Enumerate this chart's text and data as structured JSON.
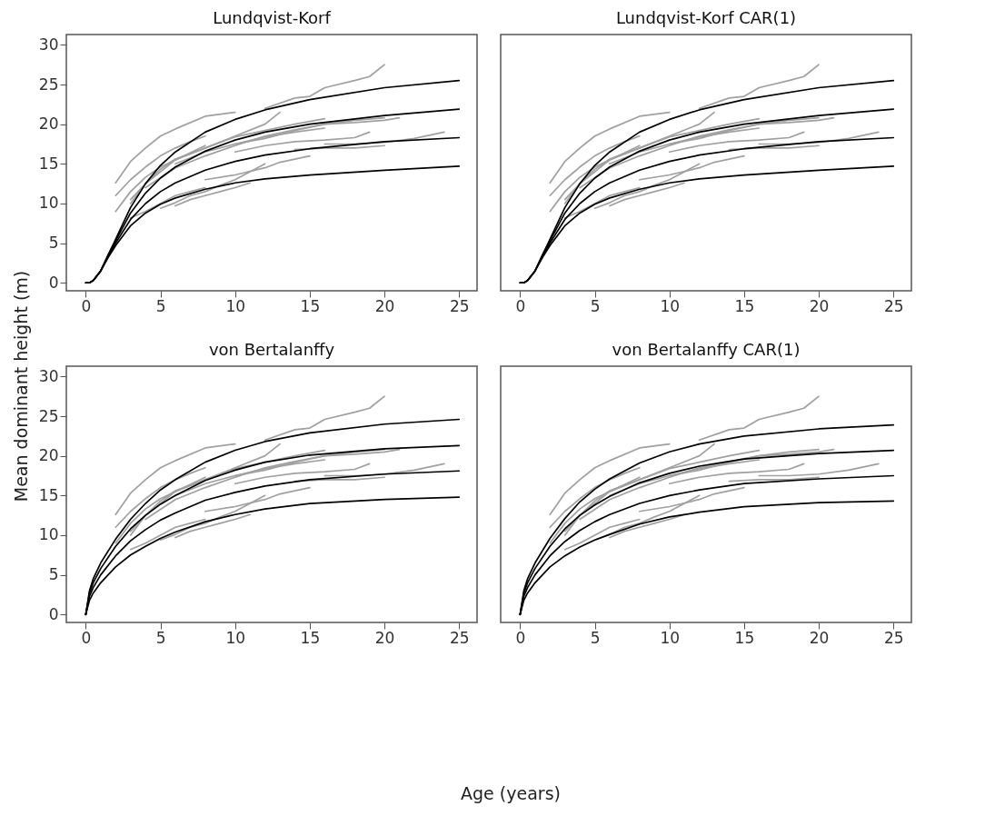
{
  "chart_data": [
    {
      "type": "line",
      "title": "Lundqvist-Korf",
      "xlabel": "Age (years)",
      "ylabel": "Mean dominant height (m)",
      "xlim": [
        -1.3,
        26.2
      ],
      "xticks": [
        0,
        5,
        10,
        15,
        20,
        25
      ],
      "ylim": [
        -1,
        31.3
      ],
      "yticks": [
        0,
        5,
        10,
        15,
        20,
        25,
        30
      ],
      "grid": false,
      "legend": false,
      "tick_labels": "xy",
      "series": [
        {
          "color": "#a0a0a0",
          "x": [
            2,
            3,
            4,
            5,
            6,
            8,
            10
          ],
          "values": [
            12.6,
            15.3,
            17,
            18.5,
            19.4,
            21,
            21.5
          ]
        },
        {
          "color": "#a0a0a0",
          "x": [
            12,
            14,
            15,
            16,
            18,
            19,
            20
          ],
          "values": [
            22,
            23.3,
            23.5,
            24.6,
            25.5,
            26,
            27.5
          ]
        },
        {
          "color": "#a0a0a0",
          "x": [
            2,
            3,
            4,
            5,
            6,
            7,
            8
          ],
          "values": [
            11,
            13,
            14.6,
            16,
            17,
            17.8,
            18.5
          ]
        },
        {
          "color": "#a0a0a0",
          "x": [
            3,
            4,
            5,
            6,
            8,
            10,
            12,
            14,
            16
          ],
          "values": [
            10,
            12.5,
            14.3,
            15.6,
            17,
            18.4,
            19.2,
            20,
            20.7
          ]
        },
        {
          "color": "#a0a0a0",
          "x": [
            2,
            3,
            4,
            5,
            6,
            8
          ],
          "values": [
            9,
            11.5,
            13.3,
            14.6,
            15.5,
            17.3
          ]
        },
        {
          "color": "#a0a0a0",
          "x": [
            3,
            4,
            5,
            6,
            7,
            8
          ],
          "values": [
            8.2,
            9,
            10,
            11,
            11.5,
            12
          ]
        },
        {
          "color": "#a0a0a0",
          "x": [
            5,
            6,
            7,
            8,
            9,
            10,
            12
          ],
          "values": [
            9.4,
            10.1,
            11,
            11.5,
            12.3,
            13,
            15
          ]
        },
        {
          "color": "#a0a0a0",
          "x": [
            6,
            7,
            8,
            9,
            10,
            11
          ],
          "values": [
            9.7,
            10.5,
            11,
            11.5,
            12,
            12.6
          ]
        },
        {
          "color": "#a0a0a0",
          "x": [
            4,
            6,
            8,
            10,
            12,
            14,
            16,
            18,
            20
          ],
          "values": [
            12,
            14.5,
            16,
            17.3,
            18.5,
            19.3,
            20,
            20.5,
            20.8
          ]
        },
        {
          "color": "#a0a0a0",
          "x": [
            10,
            12,
            14,
            16,
            18,
            19
          ],
          "values": [
            16.5,
            17.3,
            17.8,
            18,
            18.3,
            19
          ]
        },
        {
          "color": "#a0a0a0",
          "x": [
            14,
            16,
            18,
            20
          ],
          "values": [
            16.8,
            17,
            17,
            17.3
          ]
        },
        {
          "color": "#a0a0a0",
          "x": [
            16,
            18,
            20,
            22,
            24
          ],
          "values": [
            17.5,
            17.5,
            17.7,
            18.2,
            19
          ]
        },
        {
          "color": "#a0a0a0",
          "x": [
            3,
            4,
            5,
            6,
            8,
            10,
            12,
            13
          ],
          "values": [
            10.5,
            12.5,
            14,
            15.5,
            17,
            18.5,
            20,
            21.5
          ]
        },
        {
          "color": "#a0a0a0",
          "x": [
            6,
            8,
            10,
            12,
            14,
            16
          ],
          "values": [
            15,
            16.5,
            17.5,
            18.4,
            19,
            19.5
          ]
        },
        {
          "color": "#a0a0a0",
          "x": [
            10,
            12,
            14,
            15,
            16,
            18,
            20,
            21
          ],
          "values": [
            17.5,
            18.2,
            19.2,
            19.6,
            20,
            20.2,
            20.5,
            20.8
          ]
        },
        {
          "color": "#a0a0a0",
          "x": [
            8,
            10,
            12,
            13,
            14,
            15
          ],
          "values": [
            13,
            13.6,
            14.5,
            15.2,
            15.6,
            16
          ]
        },
        {
          "color": "#000000",
          "x": [
            0,
            0.25,
            0.5,
            1,
            1.5,
            2,
            3,
            4,
            5,
            6,
            8,
            10,
            12,
            15,
            20,
            25
          ],
          "values": [
            0,
            0,
            0.3,
            1.5,
            3.5,
            5.5,
            9.5,
            12.5,
            14.8,
            16.5,
            19,
            20.6,
            21.8,
            23.1,
            24.6,
            25.5
          ]
        },
        {
          "color": "#000000",
          "x": [
            0,
            0.25,
            0.5,
            1,
            1.5,
            2,
            3,
            4,
            5,
            6,
            8,
            10,
            12,
            15,
            20,
            25
          ],
          "values": [
            0,
            0,
            0.3,
            1.5,
            3.5,
            5.3,
            8.8,
            11.3,
            13.2,
            14.6,
            16.6,
            18,
            19,
            20,
            21.1,
            21.9
          ]
        },
        {
          "color": "#000000",
          "x": [
            0,
            0.25,
            0.5,
            1,
            1.5,
            2,
            3,
            4,
            5,
            6,
            8,
            10,
            12,
            15,
            20,
            25
          ],
          "values": [
            0,
            0,
            0.3,
            1.5,
            3.3,
            5,
            8,
            10,
            11.5,
            12.6,
            14.2,
            15.3,
            16.1,
            16.9,
            17.8,
            18.3
          ]
        },
        {
          "color": "#000000",
          "x": [
            0,
            0.25,
            0.5,
            1,
            1.5,
            2,
            3,
            4,
            5,
            6,
            8,
            10,
            12,
            15,
            20,
            25
          ],
          "values": [
            0,
            0,
            0.3,
            1.5,
            3.2,
            4.7,
            7.2,
            8.8,
            9.9,
            10.7,
            11.8,
            12.6,
            13.1,
            13.6,
            14.2,
            14.7
          ]
        }
      ]
    },
    {
      "type": "line",
      "title": "Lundqvist-Korf CAR(1)",
      "xlim": [
        -1.3,
        26.2
      ],
      "xticks": [
        0,
        5,
        10,
        15,
        20,
        25
      ],
      "ylim": [
        -1,
        31.3
      ],
      "grid": false,
      "legend": false,
      "tick_labels": "x",
      "series": [
        {
          "color": "#a0a0a0",
          "x": [
            2,
            3,
            4,
            5,
            6,
            8,
            10
          ],
          "values": [
            12.6,
            15.3,
            17,
            18.5,
            19.4,
            21,
            21.5
          ]
        },
        {
          "color": "#a0a0a0",
          "x": [
            12,
            14,
            15,
            16,
            18,
            19,
            20
          ],
          "values": [
            22,
            23.3,
            23.5,
            24.6,
            25.5,
            26,
            27.5
          ]
        },
        {
          "color": "#a0a0a0",
          "x": [
            2,
            3,
            4,
            5,
            6,
            7,
            8
          ],
          "values": [
            11,
            13,
            14.6,
            16,
            17,
            17.8,
            18.5
          ]
        },
        {
          "color": "#a0a0a0",
          "x": [
            3,
            4,
            5,
            6,
            8,
            10,
            12,
            14,
            16
          ],
          "values": [
            10,
            12.5,
            14.3,
            15.6,
            17,
            18.4,
            19.2,
            20,
            20.7
          ]
        },
        {
          "color": "#a0a0a0",
          "x": [
            2,
            3,
            4,
            5,
            6,
            8
          ],
          "values": [
            9,
            11.5,
            13.3,
            14.6,
            15.5,
            17.3
          ]
        },
        {
          "color": "#a0a0a0",
          "x": [
            3,
            4,
            5,
            6,
            7,
            8
          ],
          "values": [
            8.2,
            9,
            10,
            11,
            11.5,
            12
          ]
        },
        {
          "color": "#a0a0a0",
          "x": [
            5,
            6,
            7,
            8,
            9,
            10,
            12
          ],
          "values": [
            9.4,
            10.1,
            11,
            11.5,
            12.3,
            13,
            15
          ]
        },
        {
          "color": "#a0a0a0",
          "x": [
            6,
            7,
            8,
            9,
            10,
            11
          ],
          "values": [
            9.7,
            10.5,
            11,
            11.5,
            12,
            12.6
          ]
        },
        {
          "color": "#a0a0a0",
          "x": [
            4,
            6,
            8,
            10,
            12,
            14,
            16,
            18,
            20
          ],
          "values": [
            12,
            14.5,
            16,
            17.3,
            18.5,
            19.3,
            20,
            20.5,
            20.8
          ]
        },
        {
          "color": "#a0a0a0",
          "x": [
            10,
            12,
            14,
            16,
            18,
            19
          ],
          "values": [
            16.5,
            17.3,
            17.8,
            18,
            18.3,
            19
          ]
        },
        {
          "color": "#a0a0a0",
          "x": [
            14,
            16,
            18,
            20
          ],
          "values": [
            16.8,
            17,
            17,
            17.3
          ]
        },
        {
          "color": "#a0a0a0",
          "x": [
            16,
            18,
            20,
            22,
            24
          ],
          "values": [
            17.5,
            17.5,
            17.7,
            18.2,
            19
          ]
        },
        {
          "color": "#a0a0a0",
          "x": [
            3,
            4,
            5,
            6,
            8,
            10,
            12,
            13
          ],
          "values": [
            10.5,
            12.5,
            14,
            15.5,
            17,
            18.5,
            20,
            21.5
          ]
        },
        {
          "color": "#a0a0a0",
          "x": [
            6,
            8,
            10,
            12,
            14,
            16
          ],
          "values": [
            15,
            16.5,
            17.5,
            18.4,
            19,
            19.5
          ]
        },
        {
          "color": "#a0a0a0",
          "x": [
            10,
            12,
            14,
            15,
            16,
            18,
            20,
            21
          ],
          "values": [
            17.5,
            18.2,
            19.2,
            19.6,
            20,
            20.2,
            20.5,
            20.8
          ]
        },
        {
          "color": "#a0a0a0",
          "x": [
            8,
            10,
            12,
            13,
            14,
            15
          ],
          "values": [
            13,
            13.6,
            14.5,
            15.2,
            15.6,
            16
          ]
        },
        {
          "color": "#000000",
          "x": [
            0,
            0.25,
            0.5,
            1,
            1.5,
            2,
            3,
            4,
            5,
            6,
            8,
            10,
            12,
            15,
            20,
            25
          ],
          "values": [
            0,
            0,
            0.3,
            1.5,
            3.5,
            5.5,
            9.5,
            12.5,
            14.8,
            16.5,
            19,
            20.6,
            21.8,
            23.1,
            24.6,
            25.5
          ]
        },
        {
          "color": "#000000",
          "x": [
            0,
            0.25,
            0.5,
            1,
            1.5,
            2,
            3,
            4,
            5,
            6,
            8,
            10,
            12,
            15,
            20,
            25
          ],
          "values": [
            0,
            0,
            0.3,
            1.5,
            3.5,
            5.3,
            8.8,
            11.3,
            13.2,
            14.6,
            16.6,
            18,
            19,
            20,
            21.1,
            21.9
          ]
        },
        {
          "color": "#000000",
          "x": [
            0,
            0.25,
            0.5,
            1,
            1.5,
            2,
            3,
            4,
            5,
            6,
            8,
            10,
            12,
            15,
            20,
            25
          ],
          "values": [
            0,
            0,
            0.3,
            1.5,
            3.3,
            5,
            8,
            10,
            11.5,
            12.6,
            14.2,
            15.3,
            16.1,
            16.9,
            17.8,
            18.3
          ]
        },
        {
          "color": "#000000",
          "x": [
            0,
            0.25,
            0.5,
            1,
            1.5,
            2,
            3,
            4,
            5,
            6,
            8,
            10,
            12,
            15,
            20,
            25
          ],
          "values": [
            0,
            0,
            0.3,
            1.5,
            3.2,
            4.7,
            7.2,
            8.8,
            9.9,
            10.7,
            11.8,
            12.6,
            13.1,
            13.6,
            14.2,
            14.7
          ]
        }
      ]
    },
    {
      "type": "line",
      "title": "von Bertalanffy",
      "xlim": [
        -1.3,
        26.2
      ],
      "xticks": [
        0,
        5,
        10,
        15,
        20,
        25
      ],
      "ylim": [
        -1,
        31.3
      ],
      "yticks": [
        0,
        5,
        10,
        15,
        20,
        25,
        30
      ],
      "grid": false,
      "legend": false,
      "tick_labels": "xy",
      "series": [
        {
          "color": "#a0a0a0",
          "x": [
            2,
            3,
            4,
            5,
            6,
            8,
            10
          ],
          "values": [
            12.6,
            15.3,
            17,
            18.5,
            19.4,
            21,
            21.5
          ]
        },
        {
          "color": "#a0a0a0",
          "x": [
            12,
            14,
            15,
            16,
            18,
            19,
            20
          ],
          "values": [
            22,
            23.3,
            23.5,
            24.6,
            25.5,
            26,
            27.5
          ]
        },
        {
          "color": "#a0a0a0",
          "x": [
            2,
            3,
            4,
            5,
            6,
            7,
            8
          ],
          "values": [
            11,
            13,
            14.6,
            16,
            17,
            17.8,
            18.5
          ]
        },
        {
          "color": "#a0a0a0",
          "x": [
            3,
            4,
            5,
            6,
            8,
            10,
            12,
            14,
            16
          ],
          "values": [
            10,
            12.5,
            14.3,
            15.6,
            17,
            18.4,
            19.2,
            20,
            20.7
          ]
        },
        {
          "color": "#a0a0a0",
          "x": [
            2,
            3,
            4,
            5,
            6,
            8
          ],
          "values": [
            9,
            11.5,
            13.3,
            14.6,
            15.5,
            17.3
          ]
        },
        {
          "color": "#a0a0a0",
          "x": [
            3,
            4,
            5,
            6,
            7,
            8
          ],
          "values": [
            8.2,
            9,
            10,
            11,
            11.5,
            12
          ]
        },
        {
          "color": "#a0a0a0",
          "x": [
            5,
            6,
            7,
            8,
            9,
            10,
            12
          ],
          "values": [
            9.4,
            10.1,
            11,
            11.5,
            12.3,
            13,
            15
          ]
        },
        {
          "color": "#a0a0a0",
          "x": [
            6,
            7,
            8,
            9,
            10,
            11
          ],
          "values": [
            9.7,
            10.5,
            11,
            11.5,
            12,
            12.6
          ]
        },
        {
          "color": "#a0a0a0",
          "x": [
            4,
            6,
            8,
            10,
            12,
            14,
            16,
            18,
            20
          ],
          "values": [
            12,
            14.5,
            16,
            17.3,
            18.5,
            19.3,
            20,
            20.5,
            20.8
          ]
        },
        {
          "color": "#a0a0a0",
          "x": [
            10,
            12,
            14,
            16,
            18,
            19
          ],
          "values": [
            16.5,
            17.3,
            17.8,
            18,
            18.3,
            19
          ]
        },
        {
          "color": "#a0a0a0",
          "x": [
            14,
            16,
            18,
            20
          ],
          "values": [
            16.8,
            17,
            17,
            17.3
          ]
        },
        {
          "color": "#a0a0a0",
          "x": [
            16,
            18,
            20,
            22,
            24
          ],
          "values": [
            17.5,
            17.5,
            17.7,
            18.2,
            19
          ]
        },
        {
          "color": "#a0a0a0",
          "x": [
            3,
            4,
            5,
            6,
            8,
            10,
            12,
            13
          ],
          "values": [
            10.5,
            12.5,
            14,
            15.5,
            17,
            18.5,
            20,
            21.5
          ]
        },
        {
          "color": "#a0a0a0",
          "x": [
            6,
            8,
            10,
            12,
            14,
            16
          ],
          "values": [
            15,
            16.5,
            17.5,
            18.4,
            19,
            19.5
          ]
        },
        {
          "color": "#a0a0a0",
          "x": [
            10,
            12,
            14,
            15,
            16,
            18,
            20,
            21
          ],
          "values": [
            17.5,
            18.2,
            19.2,
            19.6,
            20,
            20.2,
            20.5,
            20.8
          ]
        },
        {
          "color": "#a0a0a0",
          "x": [
            8,
            10,
            12,
            13,
            14,
            15
          ],
          "values": [
            13,
            13.6,
            14.5,
            15.2,
            15.6,
            16
          ]
        },
        {
          "color": "#000000",
          "x": [
            0,
            0.25,
            0.5,
            1,
            2,
            3,
            4,
            5,
            6,
            8,
            10,
            12,
            15,
            20,
            25
          ],
          "values": [
            0,
            3,
            4.5,
            6.5,
            9.5,
            12,
            14,
            15.7,
            17,
            19.2,
            20.7,
            21.8,
            22.9,
            24,
            24.6
          ]
        },
        {
          "color": "#000000",
          "x": [
            0,
            0.25,
            0.5,
            1,
            2,
            3,
            4,
            5,
            6,
            8,
            10,
            12,
            15,
            20,
            25
          ],
          "values": [
            0,
            2.7,
            4,
            5.8,
            8.6,
            10.8,
            12.5,
            13.9,
            15,
            16.9,
            18.2,
            19.2,
            20.1,
            20.9,
            21.3
          ]
        },
        {
          "color": "#000000",
          "x": [
            0,
            0.25,
            0.5,
            1,
            2,
            3,
            4,
            5,
            6,
            8,
            10,
            12,
            15,
            20,
            25
          ],
          "values": [
            0,
            2.3,
            3.4,
            5,
            7.4,
            9.3,
            10.7,
            11.9,
            12.8,
            14.4,
            15.4,
            16.2,
            17,
            17.7,
            18.1
          ]
        },
        {
          "color": "#000000",
          "x": [
            0,
            0.25,
            0.5,
            1,
            2,
            3,
            4,
            5,
            6,
            8,
            10,
            12,
            15,
            20,
            25
          ],
          "values": [
            0,
            1.8,
            2.7,
            4,
            6,
            7.5,
            8.6,
            9.6,
            10.4,
            11.7,
            12.6,
            13.3,
            14,
            14.5,
            14.8
          ]
        }
      ]
    },
    {
      "type": "line",
      "title": "von Bertalanffy CAR(1)",
      "xlim": [
        -1.3,
        26.2
      ],
      "xticks": [
        0,
        5,
        10,
        15,
        20,
        25
      ],
      "ylim": [
        -1,
        31.3
      ],
      "grid": false,
      "legend": false,
      "tick_labels": "x",
      "series": [
        {
          "color": "#a0a0a0",
          "x": [
            2,
            3,
            4,
            5,
            6,
            8,
            10
          ],
          "values": [
            12.6,
            15.3,
            17,
            18.5,
            19.4,
            21,
            21.5
          ]
        },
        {
          "color": "#a0a0a0",
          "x": [
            12,
            14,
            15,
            16,
            18,
            19,
            20
          ],
          "values": [
            22,
            23.3,
            23.5,
            24.6,
            25.5,
            26,
            27.5
          ]
        },
        {
          "color": "#a0a0a0",
          "x": [
            2,
            3,
            4,
            5,
            6,
            7,
            8
          ],
          "values": [
            11,
            13,
            14.6,
            16,
            17,
            17.8,
            18.5
          ]
        },
        {
          "color": "#a0a0a0",
          "x": [
            3,
            4,
            5,
            6,
            8,
            10,
            12,
            14,
            16
          ],
          "values": [
            10,
            12.5,
            14.3,
            15.6,
            17,
            18.4,
            19.2,
            20,
            20.7
          ]
        },
        {
          "color": "#a0a0a0",
          "x": [
            2,
            3,
            4,
            5,
            6,
            8
          ],
          "values": [
            9,
            11.5,
            13.3,
            14.6,
            15.5,
            17.3
          ]
        },
        {
          "color": "#a0a0a0",
          "x": [
            3,
            4,
            5,
            6,
            7,
            8
          ],
          "values": [
            8.2,
            9,
            10,
            11,
            11.5,
            12
          ]
        },
        {
          "color": "#a0a0a0",
          "x": [
            5,
            6,
            7,
            8,
            9,
            10,
            12
          ],
          "values": [
            9.4,
            10.1,
            11,
            11.5,
            12.3,
            13,
            15
          ]
        },
        {
          "color": "#a0a0a0",
          "x": [
            6,
            7,
            8,
            9,
            10,
            11
          ],
          "values": [
            9.7,
            10.5,
            11,
            11.5,
            12,
            12.6
          ]
        },
        {
          "color": "#a0a0a0",
          "x": [
            4,
            6,
            8,
            10,
            12,
            14,
            16,
            18,
            20
          ],
          "values": [
            12,
            14.5,
            16,
            17.3,
            18.5,
            19.3,
            20,
            20.5,
            20.8
          ]
        },
        {
          "color": "#a0a0a0",
          "x": [
            10,
            12,
            14,
            16,
            18,
            19
          ],
          "values": [
            16.5,
            17.3,
            17.8,
            18,
            18.3,
            19
          ]
        },
        {
          "color": "#a0a0a0",
          "x": [
            14,
            16,
            18,
            20
          ],
          "values": [
            16.8,
            17,
            17,
            17.3
          ]
        },
        {
          "color": "#a0a0a0",
          "x": [
            16,
            18,
            20,
            22,
            24
          ],
          "values": [
            17.5,
            17.5,
            17.7,
            18.2,
            19
          ]
        },
        {
          "color": "#a0a0a0",
          "x": [
            3,
            4,
            5,
            6,
            8,
            10,
            12,
            13
          ],
          "values": [
            10.5,
            12.5,
            14,
            15.5,
            17,
            18.5,
            20,
            21.5
          ]
        },
        {
          "color": "#a0a0a0",
          "x": [
            6,
            8,
            10,
            12,
            14,
            16
          ],
          "values": [
            15,
            16.5,
            17.5,
            18.4,
            19,
            19.5
          ]
        },
        {
          "color": "#a0a0a0",
          "x": [
            10,
            12,
            14,
            15,
            16,
            18,
            20,
            21
          ],
          "values": [
            17.5,
            18.2,
            19.2,
            19.6,
            20,
            20.2,
            20.5,
            20.8
          ]
        },
        {
          "color": "#a0a0a0",
          "x": [
            8,
            10,
            12,
            13,
            14,
            15
          ],
          "values": [
            13,
            13.6,
            14.5,
            15.2,
            15.6,
            16
          ]
        },
        {
          "color": "#000000",
          "x": [
            0,
            0.25,
            0.5,
            1,
            2,
            3,
            4,
            5,
            6,
            8,
            10,
            12,
            15,
            20,
            25
          ],
          "values": [
            0,
            3,
            4.5,
            6.5,
            9.6,
            12.1,
            14.2,
            15.8,
            17.1,
            19.1,
            20.5,
            21.5,
            22.5,
            23.4,
            23.9
          ]
        },
        {
          "color": "#000000",
          "x": [
            0,
            0.25,
            0.5,
            1,
            2,
            3,
            4,
            5,
            6,
            8,
            10,
            12,
            15,
            20,
            25
          ],
          "values": [
            0,
            2.7,
            4,
            5.8,
            8.6,
            10.8,
            12.5,
            13.8,
            14.9,
            16.6,
            17.8,
            18.7,
            19.6,
            20.3,
            20.7
          ]
        },
        {
          "color": "#000000",
          "x": [
            0,
            0.25,
            0.5,
            1,
            2,
            3,
            4,
            5,
            6,
            8,
            10,
            12,
            15,
            20,
            25
          ],
          "values": [
            0,
            2.3,
            3.4,
            5,
            7.4,
            9.2,
            10.6,
            11.7,
            12.6,
            14,
            15,
            15.7,
            16.5,
            17.1,
            17.5
          ]
        },
        {
          "color": "#000000",
          "x": [
            0,
            0.25,
            0.5,
            1,
            2,
            3,
            4,
            5,
            6,
            8,
            10,
            12,
            15,
            20,
            25
          ],
          "values": [
            0,
            1.8,
            2.7,
            4,
            6,
            7.4,
            8.5,
            9.4,
            10.1,
            11.4,
            12.3,
            12.9,
            13.6,
            14.1,
            14.3
          ]
        }
      ]
    }
  ]
}
